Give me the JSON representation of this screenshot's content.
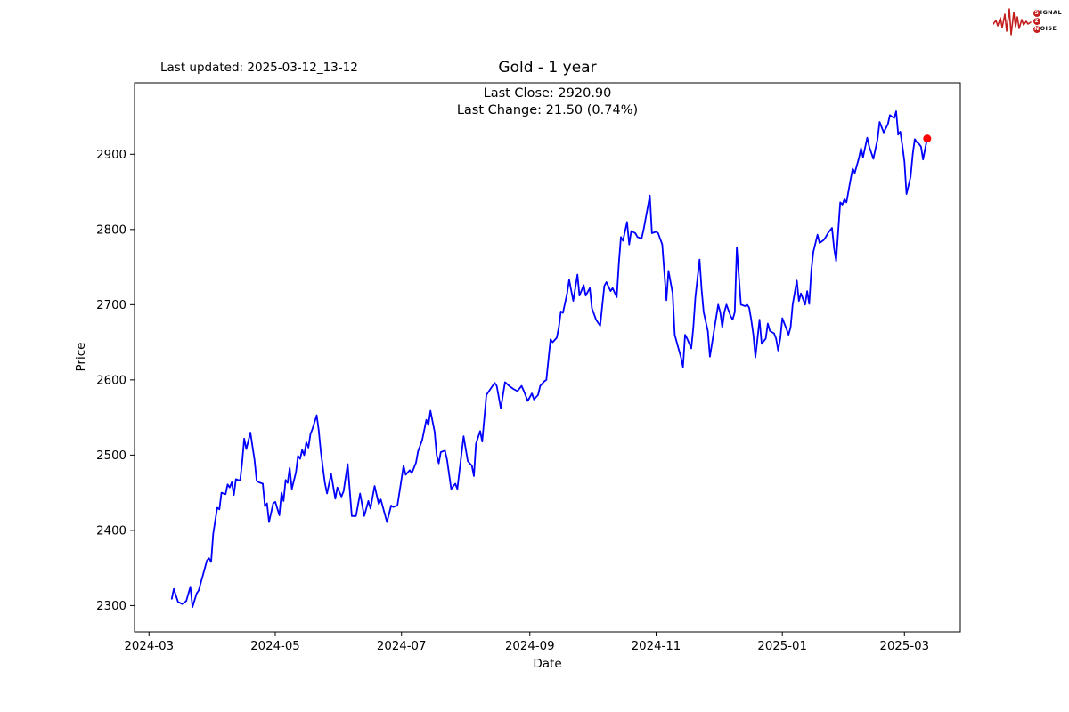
{
  "page": {
    "background": "#ffffff"
  },
  "header": {
    "last_updated": "Last updated: 2025-03-12_13-12",
    "title": "Gold - 1 year"
  },
  "annotation": {
    "line1": "Last Close: 2920.90",
    "line2": "Last Change: 21.50 (0.74%)"
  },
  "logo": {
    "word1_circled": "S",
    "word1_rest": "IGNAL",
    "word2_circled": "2",
    "word3_circled": "N",
    "word3_rest": "OISE",
    "accent_color": "#c41f1f"
  },
  "chart_data": {
    "type": "line",
    "title": "Gold - 1 year",
    "xlabel": "Date",
    "ylabel": "Price",
    "grid": false,
    "legend": "none",
    "line_color": "#0000ff",
    "line_width": 1.8,
    "marker_color": "#ff0000",
    "marker_radius": 4.5,
    "axis_color": "#000000",
    "tick_font_px": 13.3,
    "last_close": 2920.9,
    "last_change": 21.5,
    "last_change_pct": 0.74,
    "ylim": [
      2265,
      2995
    ],
    "xlim": [
      "2024-02-23",
      "2025-03-28"
    ],
    "y_ticks": [
      2300,
      2400,
      2500,
      2600,
      2700,
      2800,
      2900
    ],
    "x_ticks": [
      {
        "label": "2024-03",
        "date": "2024-03-01"
      },
      {
        "label": "2024-05",
        "date": "2024-05-01"
      },
      {
        "label": "2024-07",
        "date": "2024-07-01"
      },
      {
        "label": "2024-09",
        "date": "2024-09-01"
      },
      {
        "label": "2024-11",
        "date": "2024-11-01"
      },
      {
        "label": "2025-01",
        "date": "2025-01-01"
      },
      {
        "label": "2025-03",
        "date": "2025-03-01"
      }
    ],
    "series": [
      {
        "name": "Gold",
        "points": [
          [
            "2024-03-12",
            2309
          ],
          [
            "2024-03-13",
            2322
          ],
          [
            "2024-03-15",
            2305
          ],
          [
            "2024-03-17",
            2302
          ],
          [
            "2024-03-19",
            2306
          ],
          [
            "2024-03-21",
            2325
          ],
          [
            "2024-03-22",
            2298
          ],
          [
            "2024-03-24",
            2316
          ],
          [
            "2024-03-25",
            2320
          ],
          [
            "2024-03-27",
            2340
          ],
          [
            "2024-03-29",
            2360
          ],
          [
            "2024-03-30",
            2363
          ],
          [
            "2024-03-31",
            2358
          ],
          [
            "2024-04-01",
            2395
          ],
          [
            "2024-04-02",
            2413
          ],
          [
            "2024-04-03",
            2430
          ],
          [
            "2024-04-04",
            2428
          ],
          [
            "2024-04-05",
            2450
          ],
          [
            "2024-04-07",
            2448
          ],
          [
            "2024-04-08",
            2461
          ],
          [
            "2024-04-09",
            2457
          ],
          [
            "2024-04-10",
            2464
          ],
          [
            "2024-04-11",
            2447
          ],
          [
            "2024-04-12",
            2468
          ],
          [
            "2024-04-14",
            2466
          ],
          [
            "2024-04-15",
            2490
          ],
          [
            "2024-04-16",
            2522
          ],
          [
            "2024-04-17",
            2508
          ],
          [
            "2024-04-19",
            2530
          ],
          [
            "2024-04-21",
            2493
          ],
          [
            "2024-04-22",
            2466
          ],
          [
            "2024-04-23",
            2464
          ],
          [
            "2024-04-25",
            2462
          ],
          [
            "2024-04-26",
            2432
          ],
          [
            "2024-04-27",
            2436
          ],
          [
            "2024-04-28",
            2411
          ],
          [
            "2024-04-30",
            2436
          ],
          [
            "2024-05-01",
            2438
          ],
          [
            "2024-05-03",
            2420
          ],
          [
            "2024-05-04",
            2450
          ],
          [
            "2024-05-05",
            2439
          ],
          [
            "2024-05-06",
            2467
          ],
          [
            "2024-05-07",
            2463
          ],
          [
            "2024-05-08",
            2483
          ],
          [
            "2024-05-09",
            2455
          ],
          [
            "2024-05-11",
            2477
          ],
          [
            "2024-05-12",
            2499
          ],
          [
            "2024-05-13",
            2495
          ],
          [
            "2024-05-14",
            2507
          ],
          [
            "2024-05-15",
            2500
          ],
          [
            "2024-05-16",
            2517
          ],
          [
            "2024-05-17",
            2510
          ],
          [
            "2024-05-18",
            2528
          ],
          [
            "2024-05-19",
            2535
          ],
          [
            "2024-05-21",
            2553
          ],
          [
            "2024-05-22",
            2533
          ],
          [
            "2024-05-23",
            2505
          ],
          [
            "2024-05-25",
            2463
          ],
          [
            "2024-05-26",
            2449
          ],
          [
            "2024-05-28",
            2475
          ],
          [
            "2024-05-30",
            2442
          ],
          [
            "2024-05-31",
            2457
          ],
          [
            "2024-06-02",
            2445
          ],
          [
            "2024-06-03",
            2452
          ],
          [
            "2024-06-05",
            2488
          ],
          [
            "2024-06-07",
            2419
          ],
          [
            "2024-06-09",
            2419
          ],
          [
            "2024-06-11",
            2449
          ],
          [
            "2024-06-13",
            2419
          ],
          [
            "2024-06-15",
            2439
          ],
          [
            "2024-06-16",
            2429
          ],
          [
            "2024-06-18",
            2459
          ],
          [
            "2024-06-20",
            2435
          ],
          [
            "2024-06-21",
            2441
          ],
          [
            "2024-06-22",
            2431
          ],
          [
            "2024-06-24",
            2411
          ],
          [
            "2024-06-26",
            2433
          ],
          [
            "2024-06-27",
            2431
          ],
          [
            "2024-06-29",
            2433
          ],
          [
            "2024-07-01",
            2468
          ],
          [
            "2024-07-02",
            2486
          ],
          [
            "2024-07-03",
            2474
          ],
          [
            "2024-07-05",
            2480
          ],
          [
            "2024-07-06",
            2476
          ],
          [
            "2024-07-08",
            2490
          ],
          [
            "2024-07-09",
            2505
          ],
          [
            "2024-07-11",
            2520
          ],
          [
            "2024-07-13",
            2547
          ],
          [
            "2024-07-14",
            2540
          ],
          [
            "2024-07-15",
            2559
          ],
          [
            "2024-07-17",
            2531
          ],
          [
            "2024-07-18",
            2500
          ],
          [
            "2024-07-19",
            2489
          ],
          [
            "2024-07-20",
            2504
          ],
          [
            "2024-07-22",
            2506
          ],
          [
            "2024-07-23",
            2494
          ],
          [
            "2024-07-25",
            2455
          ],
          [
            "2024-07-27",
            2462
          ],
          [
            "2024-07-28",
            2455
          ],
          [
            "2024-07-31",
            2525
          ],
          [
            "2024-08-02",
            2492
          ],
          [
            "2024-08-04",
            2486
          ],
          [
            "2024-08-05",
            2472
          ],
          [
            "2024-08-06",
            2515
          ],
          [
            "2024-08-08",
            2532
          ],
          [
            "2024-08-09",
            2518
          ],
          [
            "2024-08-11",
            2580
          ],
          [
            "2024-08-13",
            2588
          ],
          [
            "2024-08-15",
            2596
          ],
          [
            "2024-08-16",
            2592
          ],
          [
            "2024-08-18",
            2562
          ],
          [
            "2024-08-20",
            2597
          ],
          [
            "2024-08-22",
            2592
          ],
          [
            "2024-08-24",
            2588
          ],
          [
            "2024-08-26",
            2585
          ],
          [
            "2024-08-28",
            2592
          ],
          [
            "2024-08-29",
            2586
          ],
          [
            "2024-08-31",
            2572
          ],
          [
            "2024-09-02",
            2582
          ],
          [
            "2024-09-03",
            2574
          ],
          [
            "2024-09-05",
            2580
          ],
          [
            "2024-09-06",
            2592
          ],
          [
            "2024-09-08",
            2598
          ],
          [
            "2024-09-09",
            2600
          ],
          [
            "2024-09-11",
            2654
          ],
          [
            "2024-09-12",
            2650
          ],
          [
            "2024-09-14",
            2656
          ],
          [
            "2024-09-15",
            2670
          ],
          [
            "2024-09-16",
            2691
          ],
          [
            "2024-09-17",
            2689
          ],
          [
            "2024-09-19",
            2715
          ],
          [
            "2024-09-20",
            2733
          ],
          [
            "2024-09-22",
            2705
          ],
          [
            "2024-09-24",
            2740
          ],
          [
            "2024-09-25",
            2712
          ],
          [
            "2024-09-27",
            2726
          ],
          [
            "2024-09-28",
            2712
          ],
          [
            "2024-09-30",
            2722
          ],
          [
            "2024-10-01",
            2695
          ],
          [
            "2024-10-03",
            2680
          ],
          [
            "2024-10-05",
            2672
          ],
          [
            "2024-10-07",
            2725
          ],
          [
            "2024-10-08",
            2730
          ],
          [
            "2024-10-10",
            2718
          ],
          [
            "2024-10-11",
            2722
          ],
          [
            "2024-10-13",
            2710
          ],
          [
            "2024-10-14",
            2755
          ],
          [
            "2024-10-15",
            2790
          ],
          [
            "2024-10-16",
            2785
          ],
          [
            "2024-10-18",
            2810
          ],
          [
            "2024-10-19",
            2780
          ],
          [
            "2024-10-20",
            2798
          ],
          [
            "2024-10-22",
            2795
          ],
          [
            "2024-10-23",
            2790
          ],
          [
            "2024-10-25",
            2788
          ],
          [
            "2024-10-26",
            2800
          ],
          [
            "2024-10-29",
            2845
          ],
          [
            "2024-10-30",
            2795
          ],
          [
            "2024-11-01",
            2797
          ],
          [
            "2024-11-02",
            2795
          ],
          [
            "2024-11-04",
            2780
          ],
          [
            "2024-11-05",
            2742
          ],
          [
            "2024-11-06",
            2706
          ],
          [
            "2024-11-07",
            2745
          ],
          [
            "2024-11-09",
            2715
          ],
          [
            "2024-11-10",
            2660
          ],
          [
            "2024-11-11",
            2650
          ],
          [
            "2024-11-13",
            2630
          ],
          [
            "2024-11-14",
            2617
          ],
          [
            "2024-11-15",
            2660
          ],
          [
            "2024-11-16",
            2655
          ],
          [
            "2024-11-18",
            2642
          ],
          [
            "2024-11-19",
            2670
          ],
          [
            "2024-11-20",
            2710
          ],
          [
            "2024-11-22",
            2760
          ],
          [
            "2024-11-23",
            2720
          ],
          [
            "2024-11-24",
            2690
          ],
          [
            "2024-11-26",
            2665
          ],
          [
            "2024-11-27",
            2631
          ],
          [
            "2024-11-29",
            2665
          ],
          [
            "2024-12-01",
            2700
          ],
          [
            "2024-12-02",
            2690
          ],
          [
            "2024-12-03",
            2670
          ],
          [
            "2024-12-04",
            2690
          ],
          [
            "2024-12-05",
            2700
          ],
          [
            "2024-12-07",
            2685
          ],
          [
            "2024-12-08",
            2680
          ],
          [
            "2024-12-09",
            2690
          ],
          [
            "2024-12-10",
            2776
          ],
          [
            "2024-12-12",
            2700
          ],
          [
            "2024-12-14",
            2698
          ],
          [
            "2024-12-15",
            2700
          ],
          [
            "2024-12-16",
            2696
          ],
          [
            "2024-12-17",
            2680
          ],
          [
            "2024-12-18",
            2660
          ],
          [
            "2024-12-19",
            2630
          ],
          [
            "2024-12-20",
            2655
          ],
          [
            "2024-12-21",
            2680
          ],
          [
            "2024-12-22",
            2648
          ],
          [
            "2024-12-24",
            2655
          ],
          [
            "2024-12-25",
            2675
          ],
          [
            "2024-12-26",
            2665
          ],
          [
            "2024-12-28",
            2662
          ],
          [
            "2024-12-29",
            2655
          ],
          [
            "2024-12-30",
            2639
          ],
          [
            "2024-12-31",
            2655
          ],
          [
            "2025-01-01",
            2682
          ],
          [
            "2025-01-03",
            2668
          ],
          [
            "2025-01-04",
            2660
          ],
          [
            "2025-01-05",
            2670
          ],
          [
            "2025-01-06",
            2700
          ],
          [
            "2025-01-08",
            2732
          ],
          [
            "2025-01-09",
            2705
          ],
          [
            "2025-01-10",
            2715
          ],
          [
            "2025-01-12",
            2700
          ],
          [
            "2025-01-13",
            2718
          ],
          [
            "2025-01-14",
            2701
          ],
          [
            "2025-01-15",
            2745
          ],
          [
            "2025-01-16",
            2770
          ],
          [
            "2025-01-18",
            2793
          ],
          [
            "2025-01-19",
            2782
          ],
          [
            "2025-01-21",
            2786
          ],
          [
            "2025-01-22",
            2790
          ],
          [
            "2025-01-23",
            2795
          ],
          [
            "2025-01-25",
            2802
          ],
          [
            "2025-01-26",
            2775
          ],
          [
            "2025-01-27",
            2758
          ],
          [
            "2025-01-29",
            2836
          ],
          [
            "2025-01-30",
            2833
          ],
          [
            "2025-01-31",
            2840
          ],
          [
            "2025-02-01",
            2836
          ],
          [
            "2025-02-03",
            2867
          ],
          [
            "2025-02-04",
            2881
          ],
          [
            "2025-02-05",
            2875
          ],
          [
            "2025-02-07",
            2895
          ],
          [
            "2025-02-08",
            2908
          ],
          [
            "2025-02-09",
            2896
          ],
          [
            "2025-02-11",
            2922
          ],
          [
            "2025-02-12",
            2910
          ],
          [
            "2025-02-14",
            2894
          ],
          [
            "2025-02-16",
            2920
          ],
          [
            "2025-02-17",
            2943
          ],
          [
            "2025-02-19",
            2929
          ],
          [
            "2025-02-21",
            2940
          ],
          [
            "2025-02-22",
            2952
          ],
          [
            "2025-02-24",
            2948
          ],
          [
            "2025-02-25",
            2957
          ],
          [
            "2025-02-26",
            2926
          ],
          [
            "2025-02-27",
            2930
          ],
          [
            "2025-02-28",
            2912
          ],
          [
            "2025-03-01",
            2890
          ],
          [
            "2025-03-02",
            2847
          ],
          [
            "2025-03-04",
            2870
          ],
          [
            "2025-03-05",
            2900
          ],
          [
            "2025-03-06",
            2920
          ],
          [
            "2025-03-07",
            2916
          ],
          [
            "2025-03-08",
            2914
          ],
          [
            "2025-03-09",
            2910
          ],
          [
            "2025-03-10",
            2893
          ],
          [
            "2025-03-12",
            2920.9
          ]
        ]
      }
    ]
  }
}
